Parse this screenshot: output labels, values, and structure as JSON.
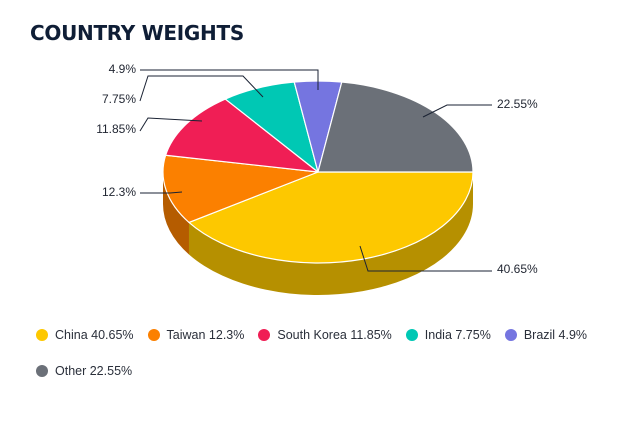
{
  "chart_title": "COUNTRY WEIGHTS",
  "chart_data": {
    "type": "pie",
    "title": "COUNTRY WEIGHTS",
    "categories": [
      "China",
      "Taiwan",
      "South Korea",
      "India",
      "Brazil",
      "Other"
    ],
    "values": [
      40.65,
      12.3,
      11.85,
      7.75,
      4.9,
      22.55
    ],
    "data_labels": [
      "40.65%",
      "12.3%",
      "11.85%",
      "7.75%",
      "4.9%",
      "22.55%"
    ],
    "legend_labels": [
      "China 40.65%",
      "Taiwan 12.3%",
      "South Korea 11.85%",
      "India 7.75%",
      "Brazil 4.9%",
      "Other 22.55%"
    ],
    "colors": [
      "#fdc800",
      "#fb8000",
      "#f01e55",
      "#00c8b4",
      "#7575e0",
      "#6b7078"
    ],
    "legend_position": "bottom",
    "style": "3d"
  }
}
